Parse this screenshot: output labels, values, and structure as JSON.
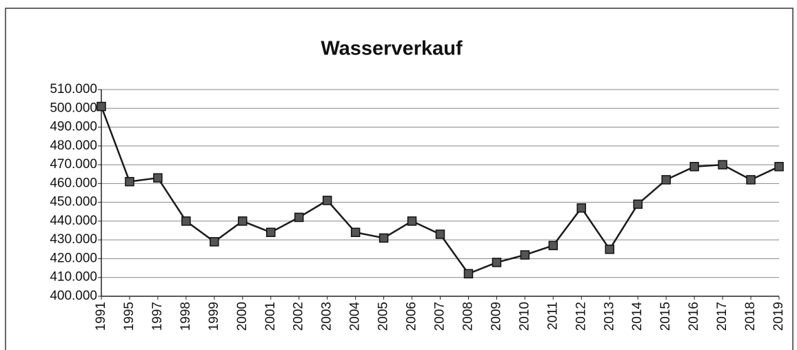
{
  "chart_data": {
    "type": "line",
    "title": "Wasserverkauf",
    "categories": [
      "1991",
      "1995",
      "1997",
      "1998",
      "1999",
      "2000",
      "2001",
      "2002",
      "2003",
      "2004",
      "2005",
      "2006",
      "2007",
      "2008",
      "2009",
      "2010",
      "2011",
      "2012",
      "2013",
      "2014",
      "2015",
      "2016",
      "2017",
      "2018",
      "2019"
    ],
    "values": [
      501000,
      461000,
      463000,
      440000,
      429000,
      440000,
      434000,
      442000,
      451000,
      434000,
      431000,
      440000,
      433000,
      412000,
      418000,
      422000,
      427000,
      447000,
      425000,
      449000,
      462000,
      469000,
      470000,
      462000,
      469000
    ],
    "color": "#1a1a1a",
    "marker_color": "#555555",
    "ylim": [
      400000,
      510000
    ],
    "yticks": [
      {
        "value": 400000,
        "label": "400.000"
      },
      {
        "value": 410000,
        "label": "410.000"
      },
      {
        "value": 420000,
        "label": "420.000"
      },
      {
        "value": 430000,
        "label": "430.000"
      },
      {
        "value": 440000,
        "label": "440.000"
      },
      {
        "value": 450000,
        "label": "450.000"
      },
      {
        "value": 460000,
        "label": "460.000"
      },
      {
        "value": 470000,
        "label": "470.000"
      },
      {
        "value": 480000,
        "label": "480.000"
      },
      {
        "value": 490000,
        "label": "490.000"
      },
      {
        "value": 500000,
        "label": "500.000"
      },
      {
        "value": 510000,
        "label": "510.000"
      }
    ],
    "grid": true
  }
}
